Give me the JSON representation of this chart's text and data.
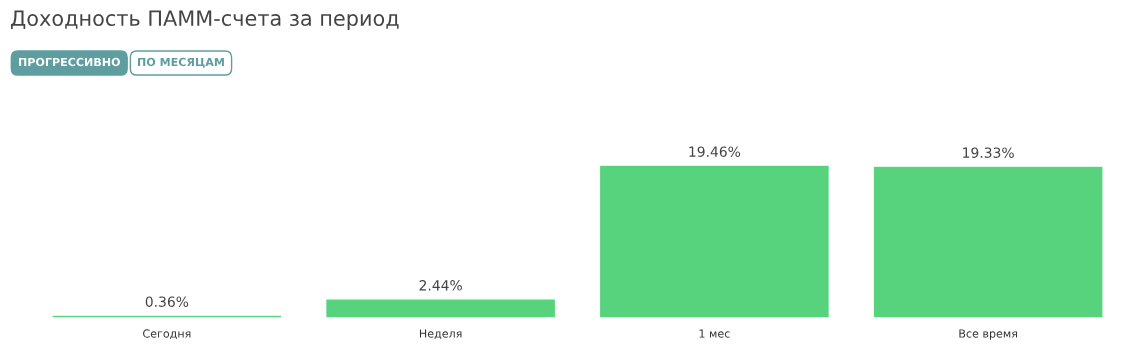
{
  "chart_data": {
    "type": "bar",
    "title": "Доходность ПАММ-счета за период",
    "annotations": [
      "ПРОГРЕССИВНО",
      "ПО МЕСЯЦАМ"
    ],
    "categories": [
      "Сегодня",
      "Неделя",
      "1 мес",
      "Все время"
    ],
    "values": [
      0.36,
      2.44,
      19.46,
      19.33
    ],
    "value_labels": [
      "0.36%",
      "2.44%",
      "19.46%",
      "19.33%"
    ],
    "color": "#57d37e",
    "grid": false,
    "legend": false
  }
}
